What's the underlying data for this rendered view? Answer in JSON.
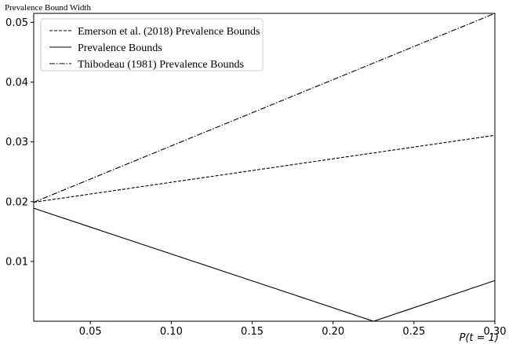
{
  "chart_data": {
    "type": "line",
    "ylabel": "Prevalence Bound Width",
    "xlabel": "P(t = 1)",
    "xlim": [
      0.015,
      0.3
    ],
    "ylim": [
      0.0,
      0.0515
    ],
    "x_ticks": [
      0.05,
      0.1,
      0.15,
      0.2,
      0.25,
      0.3
    ],
    "x_tick_labels": [
      "0.05",
      "0.10",
      "0.15",
      "0.20",
      "0.25",
      "0.30"
    ],
    "y_ticks": [
      0.01,
      0.02,
      0.03,
      0.04,
      0.05
    ],
    "y_tick_labels": [
      "0.01",
      "0.02",
      "0.03",
      "0.04",
      "0.05"
    ],
    "grid": false,
    "legend_position": "top-left",
    "series": [
      {
        "name": "Emerson et al. (2018) Prevalence Bounds",
        "line_style": "dashed",
        "x": [
          0.015,
          0.3
        ],
        "y": [
          0.0199,
          0.0311
        ]
      },
      {
        "name": "Prevalence Bounds",
        "line_style": "solid",
        "x": [
          0.015,
          0.225,
          0.3
        ],
        "y": [
          0.0189,
          0.0,
          0.0068
        ]
      },
      {
        "name": "Thibodeau (1981) Prevalence Bounds",
        "line_style": "dashdot",
        "x": [
          0.015,
          0.3
        ],
        "y": [
          0.0199,
          0.0515
        ]
      }
    ]
  }
}
